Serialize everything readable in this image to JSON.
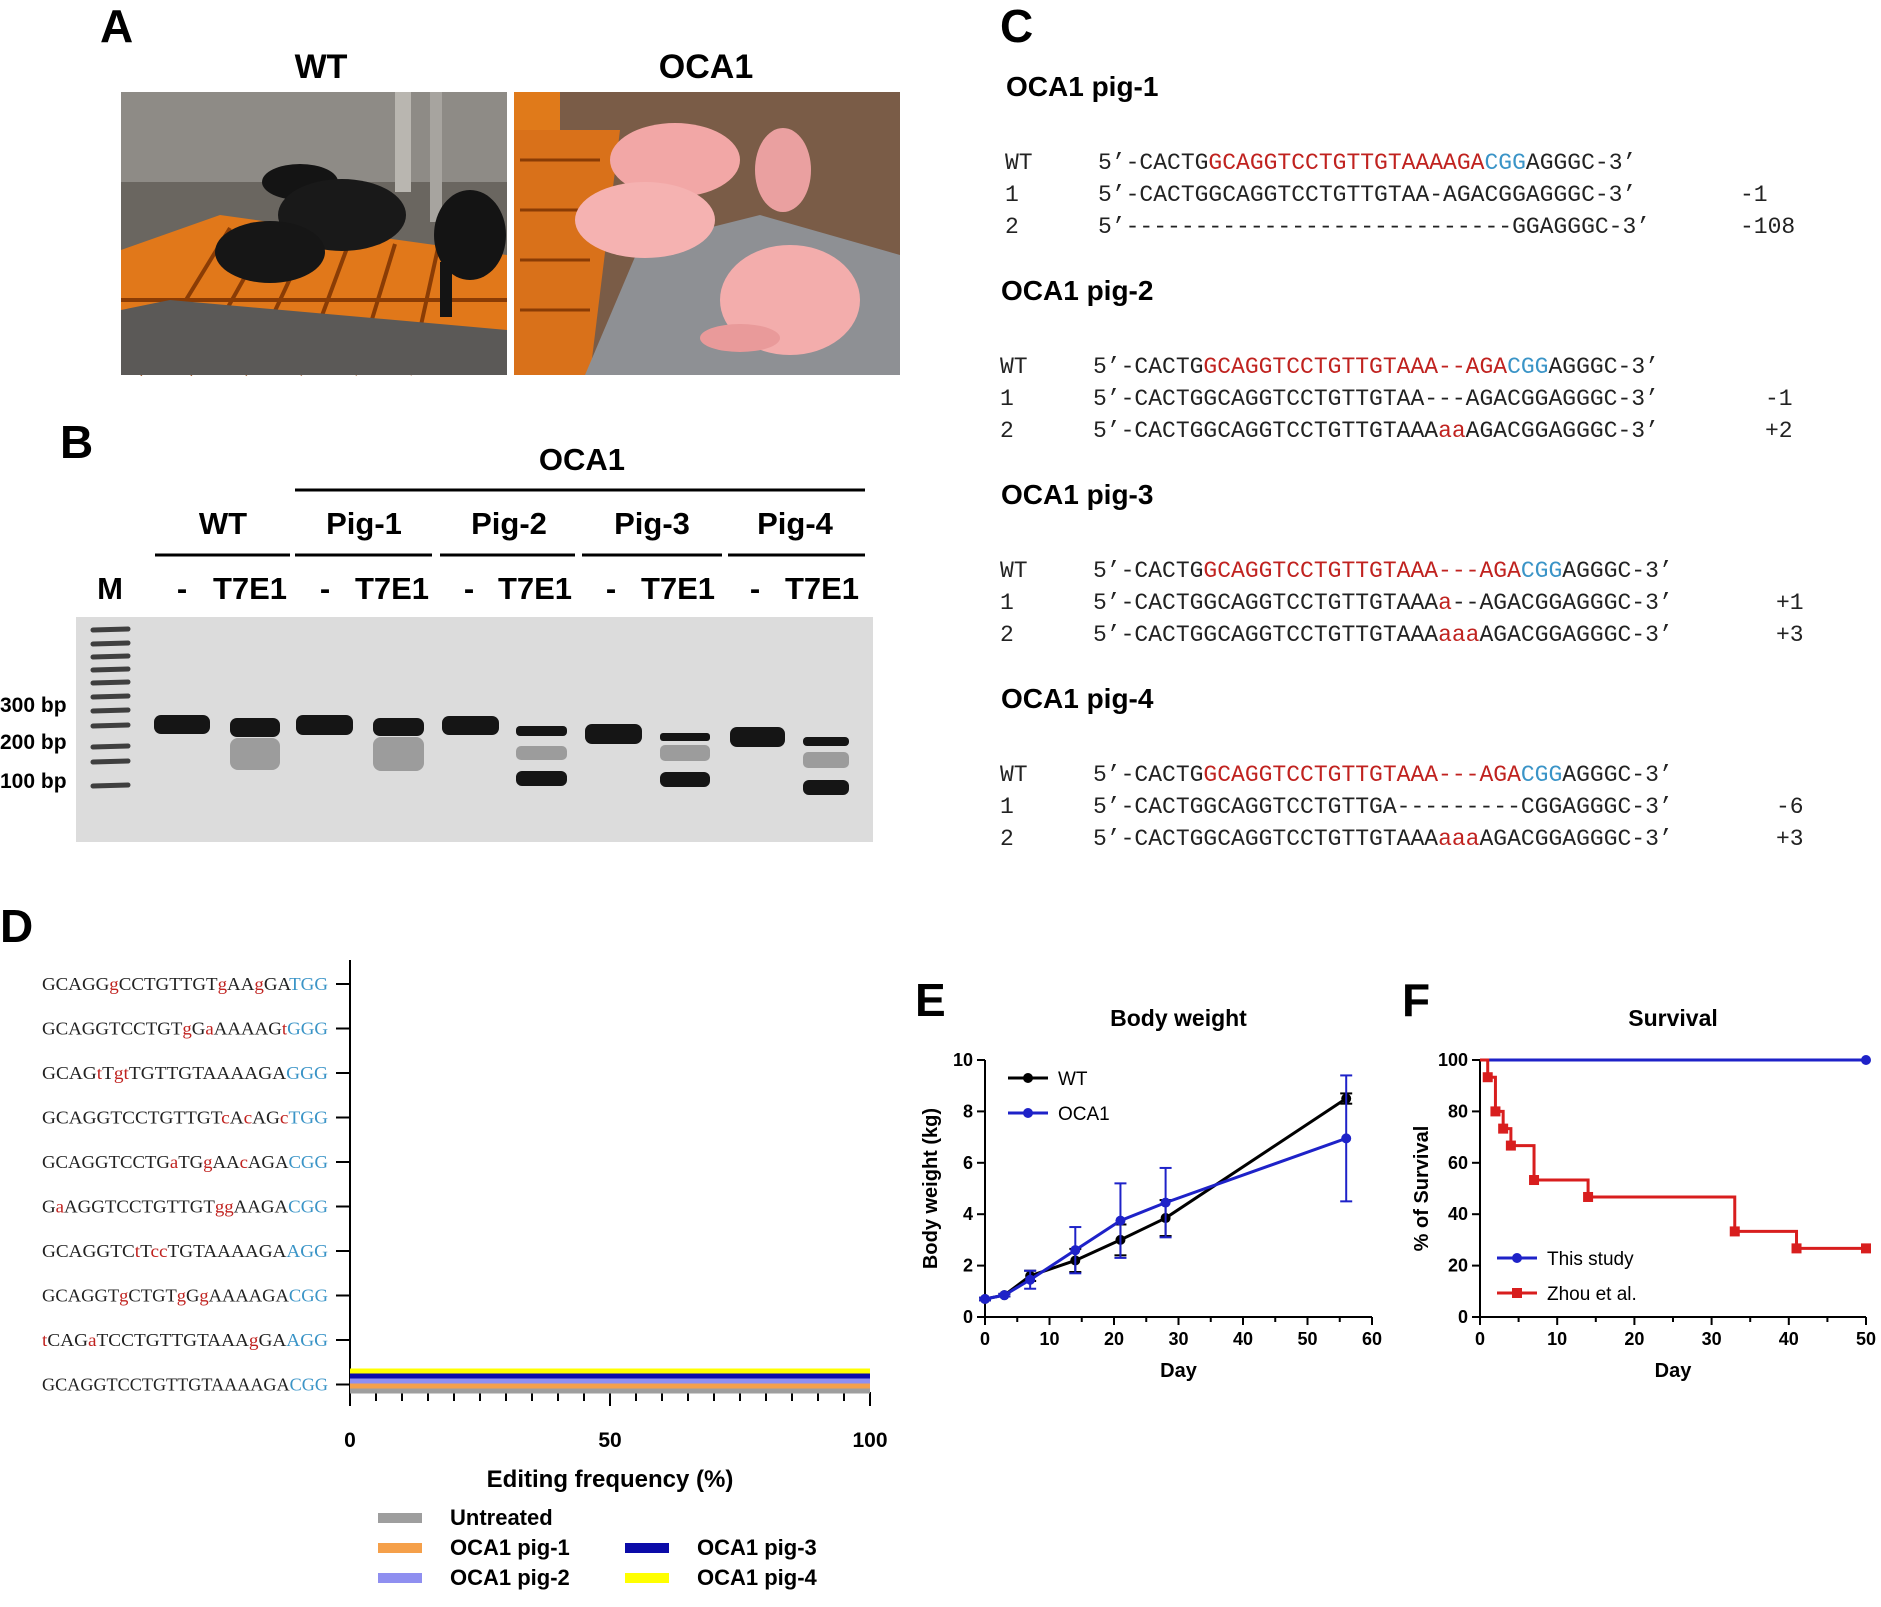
{
  "panels": {
    "A": "A",
    "B": "B",
    "C": "C",
    "D": "D",
    "E": "E",
    "F": "F"
  },
  "panelA": {
    "wt_label": "WT",
    "oca1_label": "OCA1"
  },
  "panelB": {
    "group_label": "OCA1",
    "lanes": [
      "WT",
      "Pig-1",
      "Pig-2",
      "Pig-3",
      "Pig-4"
    ],
    "marker": "M",
    "minus": "-",
    "enzyme": "T7E1",
    "markers": [
      "300 bp",
      "200 bp",
      "100 bp"
    ]
  },
  "panelC": {
    "pigs": [
      {
        "name": "OCA1 pig-1",
        "rows": [
          {
            "id": "WT",
            "seq": [
              [
                "5’-CACTG",
                ""
              ],
              [
                "GCAGGTCCTGTTGTAAAAGA",
                "r"
              ],
              [
                "CGG",
                "b"
              ],
              [
                "AGGGC-3’",
                ""
              ]
            ],
            "change": ""
          },
          {
            "id": "1",
            "seq": [
              [
                "5’-CACTGGCAGGTCCTGTTGTAA-AGACGGAGGGC-3’",
                ""
              ]
            ],
            "change": "-1"
          },
          {
            "id": "2",
            "seq": [
              [
                "5’----------------------------GGAGGGC-3’",
                ""
              ]
            ],
            "change": "-108"
          }
        ]
      },
      {
        "name": "OCA1 pig-2",
        "rows": [
          {
            "id": "WT",
            "seq": [
              [
                "5’-CACTG",
                ""
              ],
              [
                "GCAGGTCCTGTTGTAAA--AGA",
                "r"
              ],
              [
                "CGG",
                "b"
              ],
              [
                "AGGGC-3’",
                ""
              ]
            ],
            "change": ""
          },
          {
            "id": "1",
            "seq": [
              [
                "5’-CACTGGCAGGTCCTGTTGTAA---AGACGGAGGGC-3’",
                ""
              ]
            ],
            "change": "-1"
          },
          {
            "id": "2",
            "seq": [
              [
                "5’-CACTGGCAGGTCCTGTTGTAAA",
                ""
              ],
              [
                "aa",
                "r"
              ],
              [
                "AGACGGAGGGC-3’",
                ""
              ]
            ],
            "change": "+2"
          }
        ]
      },
      {
        "name": "OCA1 pig-3",
        "rows": [
          {
            "id": "WT",
            "seq": [
              [
                "5’-CACTG",
                ""
              ],
              [
                "GCAGGTCCTGTTGTAAA---AGA",
                "r"
              ],
              [
                "CGG",
                "b"
              ],
              [
                "AGGGC-3’",
                ""
              ]
            ],
            "change": ""
          },
          {
            "id": "1",
            "seq": [
              [
                "5’-CACTGGCAGGTCCTGTTGTAAA",
                ""
              ],
              [
                "a",
                "r"
              ],
              [
                "--AGACGGAGGGC-3’",
                ""
              ]
            ],
            "change": "+1"
          },
          {
            "id": "2",
            "seq": [
              [
                "5’-CACTGGCAGGTCCTGTTGTAAA",
                ""
              ],
              [
                "aaa",
                "r"
              ],
              [
                "AGACGGAGGGC-3’",
                ""
              ]
            ],
            "change": "+3"
          }
        ]
      },
      {
        "name": "OCA1 pig-4",
        "rows": [
          {
            "id": "WT",
            "seq": [
              [
                "5’-CACTG",
                ""
              ],
              [
                "GCAGGTCCTGTTGTAAA---AGA",
                "r"
              ],
              [
                "CGG",
                "b"
              ],
              [
                "AGGGC-3’",
                ""
              ]
            ],
            "change": ""
          },
          {
            "id": "1",
            "seq": [
              [
                "5’-CACTGGCAGGTCCTGTTGA---------CGGAGGGC-3’",
                ""
              ]
            ],
            "change": "-6"
          },
          {
            "id": "2",
            "seq": [
              [
                "5’-CACTGGCAGGTCCTGTTGTAAA",
                ""
              ],
              [
                "aaa",
                "r"
              ],
              [
                "AGACGGAGGGC-3’",
                ""
              ]
            ],
            "change": "+3"
          }
        ]
      }
    ]
  },
  "panelD": {
    "sequences": [
      [
        [
          "GCAGG",
          ""
        ],
        [
          "g",
          "r"
        ],
        [
          "CCTGTTGT",
          ""
        ],
        [
          "g",
          "r"
        ],
        [
          "AA",
          ""
        ],
        [
          "g",
          "r"
        ],
        [
          "GA",
          ""
        ],
        [
          "TGG",
          "b"
        ]
      ],
      [
        [
          "GCAGGTCCTGT",
          ""
        ],
        [
          "g",
          "r"
        ],
        [
          "G",
          ""
        ],
        [
          "a",
          "r"
        ],
        [
          "AAAAG",
          ""
        ],
        [
          "t",
          "r"
        ],
        [
          "GGG",
          "b"
        ]
      ],
      [
        [
          "GCAG",
          ""
        ],
        [
          "t",
          "r"
        ],
        [
          "T",
          ""
        ],
        [
          "gt",
          "r"
        ],
        [
          "TGTTGTAAAAGA",
          ""
        ],
        [
          "GGG",
          "b"
        ]
      ],
      [
        [
          "GCAGGTCCTGTTGT",
          ""
        ],
        [
          "c",
          "r"
        ],
        [
          "A",
          ""
        ],
        [
          "c",
          "r"
        ],
        [
          "AG",
          ""
        ],
        [
          "c",
          "r"
        ],
        [
          "TGG",
          "b"
        ]
      ],
      [
        [
          "GCAGGTCCTG",
          ""
        ],
        [
          "a",
          "r"
        ],
        [
          "TG",
          ""
        ],
        [
          "g",
          "r"
        ],
        [
          "AA",
          ""
        ],
        [
          "c",
          "r"
        ],
        [
          "AGA",
          ""
        ],
        [
          "CGG",
          "b"
        ]
      ],
      [
        [
          "G",
          ""
        ],
        [
          "a",
          "r"
        ],
        [
          "AGGTCCTGTTGT",
          ""
        ],
        [
          "gg",
          "r"
        ],
        [
          "AAGA",
          ""
        ],
        [
          "CGG",
          "b"
        ]
      ],
      [
        [
          "GCAGGTC",
          ""
        ],
        [
          "t",
          "r"
        ],
        [
          "T",
          ""
        ],
        [
          "cc",
          "r"
        ],
        [
          "TGTAAAAGA",
          ""
        ],
        [
          "AGG",
          "b"
        ]
      ],
      [
        [
          "GCAGGT",
          ""
        ],
        [
          "g",
          "r"
        ],
        [
          "CTGT",
          ""
        ],
        [
          "g",
          "r"
        ],
        [
          "G",
          ""
        ],
        [
          "g",
          "r"
        ],
        [
          "AAAAGA",
          ""
        ],
        [
          "CGG",
          "b"
        ]
      ],
      [
        [
          "t",
          "r"
        ],
        [
          "CAG",
          ""
        ],
        [
          "a",
          "r"
        ],
        [
          "TCCTGTTGTAAA",
          ""
        ],
        [
          "g",
          "r"
        ],
        [
          "GA",
          ""
        ],
        [
          "AGG",
          "b"
        ]
      ],
      [
        [
          "GCAGGTCCTGTTGTAAAAGA",
          ""
        ],
        [
          "CGG",
          "b"
        ]
      ]
    ],
    "xlabel": "Editing frequency (%)",
    "ticks": [
      "0",
      "50",
      "100"
    ],
    "legend": [
      "Untreated",
      "OCA1 pig-1",
      "OCA1 pig-2",
      "OCA1 pig-3",
      "OCA1 pig-4"
    ],
    "colors": [
      "#9e9e9e",
      "#f5a04a",
      "#8f8ff0",
      "#0b0ba8",
      "#ffff00"
    ]
  },
  "chart_data": [
    {
      "panel": "D",
      "type": "bar",
      "orientation": "horizontal",
      "title": "",
      "xlabel": "Editing frequency (%)",
      "xlim": [
        0,
        100
      ],
      "categories": [
        "GCAGGgCCTGTTGTgAAgGATGG",
        "GCAGGTCCTGTgGaAAAAGtGGG",
        "GCAGtTgtTGTTGTAAAAGAGGG",
        "GCAGGTCCTGTTGTcAcAGcTGG",
        "GCAGGTCCTGaTGgAAcAGACGG",
        "GaAGGTCCTGTTGTggAAGACGG",
        "GCAGGTCtTccTGTAAAAGAAGG",
        "GCAGGTgCTGTgGgAAAAGACGG",
        "tCAGaTCCTGTTGTAAAgGAAGG",
        "GCAGGTCCTGTTGTAAAAGACGG"
      ],
      "series": [
        {
          "name": "Untreated",
          "values": [
            0,
            0,
            0,
            0,
            0,
            0,
            0,
            0,
            0,
            100
          ]
        },
        {
          "name": "OCA1 pig-1",
          "values": [
            0,
            0,
            0,
            0,
            0,
            0,
            0,
            0,
            0,
            100
          ]
        },
        {
          "name": "OCA1 pig-2",
          "values": [
            0,
            0,
            0,
            0,
            0,
            0,
            0,
            0,
            0,
            100
          ]
        },
        {
          "name": "OCA1 pig-3",
          "values": [
            0,
            0,
            0,
            0,
            0,
            0,
            0,
            0,
            0,
            100
          ]
        },
        {
          "name": "OCA1 pig-4",
          "values": [
            0,
            0,
            0,
            0,
            0,
            0,
            0,
            0,
            0,
            100
          ]
        }
      ]
    },
    {
      "panel": "E",
      "type": "line",
      "title": "Body weight",
      "xlabel": "Day",
      "ylabel": "Body weight (kg)",
      "xlim": [
        0,
        60
      ],
      "ylim": [
        0,
        10
      ],
      "xticks": [
        "0",
        "10",
        "20",
        "30",
        "40",
        "50",
        "60"
      ],
      "yticks": [
        "0",
        "2",
        "4",
        "6",
        "8",
        "10"
      ],
      "series": [
        {
          "name": "WT",
          "color": "#000000",
          "x": [
            0,
            3,
            7,
            14,
            21,
            28,
            56
          ],
          "y": [
            0.7,
            0.85,
            1.6,
            2.2,
            3.0,
            3.85,
            8.5
          ],
          "err": [
            0.05,
            0.05,
            0.2,
            0.45,
            0.6,
            0.7,
            0.2
          ]
        },
        {
          "name": "OCA1",
          "color": "#1e22c8",
          "x": [
            0,
            3,
            7,
            14,
            21,
            28,
            56
          ],
          "y": [
            0.7,
            0.85,
            1.45,
            2.6,
            3.75,
            4.45,
            6.95
          ],
          "err": [
            0.05,
            0.05,
            0.35,
            0.9,
            1.45,
            1.35,
            2.45
          ]
        }
      ]
    },
    {
      "panel": "F",
      "type": "line",
      "title": "Survival",
      "xlabel": "Day",
      "ylabel": "% of Survival",
      "xlim": [
        0,
        50
      ],
      "ylim": [
        0,
        100
      ],
      "xticks": [
        "0",
        "10",
        "20",
        "30",
        "40",
        "50"
      ],
      "yticks": [
        "0",
        "20",
        "40",
        "60",
        "80",
        "100"
      ],
      "series": [
        {
          "name": "This study",
          "color": "#1e22c8",
          "x": [
            0,
            50
          ],
          "y": [
            100,
            100
          ]
        },
        {
          "name": "Zhou et al.",
          "color": "#d81e1e",
          "x": [
            0,
            1,
            2,
            3,
            4,
            7,
            14,
            33,
            41,
            50
          ],
          "y": [
            100,
            93.3,
            80,
            73.3,
            66.7,
            53.3,
            46.7,
            33.3,
            26.7,
            26.7
          ]
        }
      ]
    }
  ]
}
